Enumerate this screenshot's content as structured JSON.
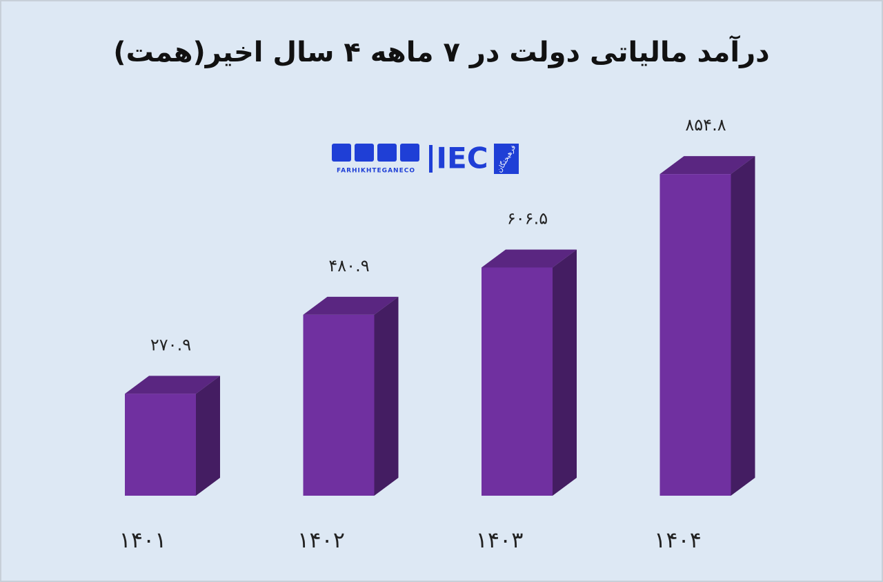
{
  "chart_data": {
    "type": "bar3d",
    "title": "درآمد مالیاتی دولت در ۷ ماهه ۴ سال اخیر(همت)",
    "categories": [
      "۱۴۰۱",
      "۱۴۰۲",
      "۱۴۰۳",
      "۱۴۰۴"
    ],
    "values": [
      270.9,
      480.9,
      606.5,
      854.8
    ],
    "value_labels": [
      "۲۷۰.۹",
      "۴۸۰.۹",
      "۶۰۶.۵",
      "۸۵۴.۸"
    ],
    "color": "#7030a0",
    "annotations": [
      "IEC",
      "فرهیختگان",
      "FARHIKHTEGANECO"
    ]
  }
}
